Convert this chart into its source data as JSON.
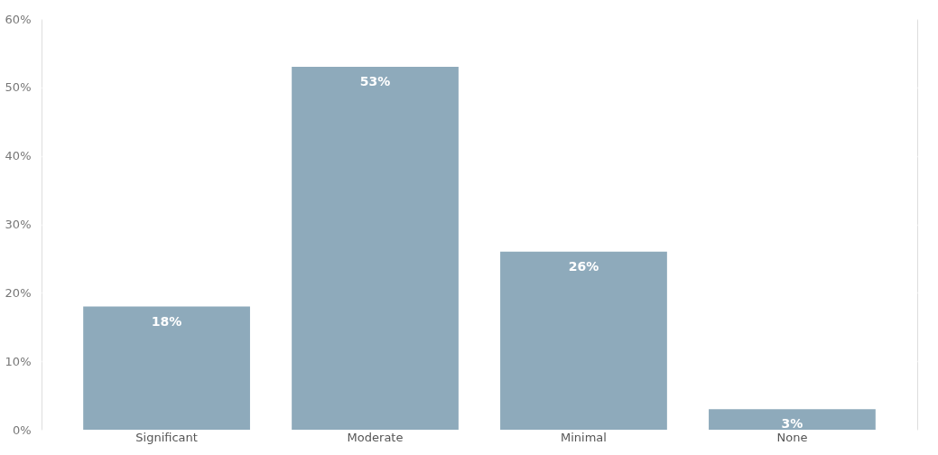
{
  "chart_data": {
    "type": "bar",
    "categories": [
      "Significant",
      "Moderate",
      "Minimal",
      "None"
    ],
    "values": [
      18,
      53,
      26,
      3
    ],
    "color": "#8eaabb",
    "ylim": [
      0,
      60
    ],
    "yticks": [
      {
        "value": 0,
        "label": "0%"
      },
      {
        "value": 10,
        "label": "10%"
      },
      {
        "value": 20,
        "label": "20%"
      },
      {
        "value": 30,
        "label": "30%"
      },
      {
        "value": 40,
        "label": "40%"
      },
      {
        "value": 50,
        "label": "50%"
      },
      {
        "value": 60,
        "label": "60%"
      }
    ],
    "value_labels": [
      "18%",
      "53%",
      "26%",
      "3%"
    ],
    "grid": "y"
  }
}
